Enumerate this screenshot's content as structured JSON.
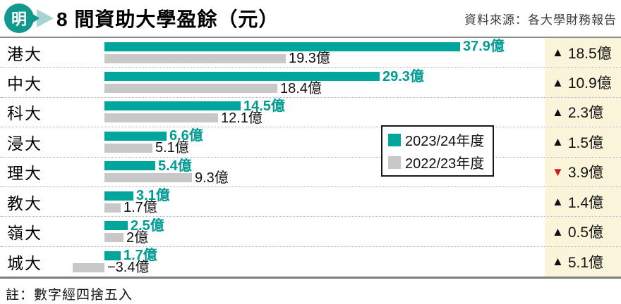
{
  "header": {
    "logo_char": "明",
    "title": "8 間資助大學盈餘（元）",
    "source": "資料來源：各大學財務報告"
  },
  "legend": {
    "items": [
      {
        "label": "2023/24年度",
        "color": "#00a69c"
      },
      {
        "label": "2022/23年度",
        "color": "#c8c8c8"
      }
    ]
  },
  "note": "註：數字經四捨五入",
  "colors": {
    "teal": "#00a69c",
    "teal_text": "#009a93",
    "gray": "#c8c8c8",
    "change_bg": "#faf5da",
    "up_triangle": "#111111",
    "down_triangle": "#d6171f"
  },
  "chart_data": {
    "type": "bar",
    "orientation": "horizontal",
    "title": "8 間資助大學盈餘（元）",
    "unit": "億",
    "value_range": [
      -4,
      38
    ],
    "legend_position": "middle-right",
    "categories": [
      "港大",
      "中大",
      "科大",
      "浸大",
      "理大",
      "教大",
      "嶺大",
      "城大"
    ],
    "series": [
      {
        "name": "2023/24年度",
        "values": [
          37.9,
          29.3,
          14.5,
          6.6,
          5.4,
          3.1,
          2.5,
          1.7
        ],
        "labels": [
          "37.9億",
          "29.3億",
          "14.5億",
          "6.6億",
          "5.4億",
          "3.1億",
          "2.5億",
          "1.7億"
        ]
      },
      {
        "name": "2022/23年度",
        "values": [
          19.3,
          18.4,
          12.1,
          5.1,
          9.3,
          1.7,
          2,
          -3.4
        ],
        "labels": [
          "19.3億",
          "18.4億",
          "12.1億",
          "5.1億",
          "9.3億",
          "1.7億",
          "2億",
          "−3.4億"
        ]
      }
    ],
    "changes": [
      {
        "dir": "up",
        "label": "18.5億"
      },
      {
        "dir": "up",
        "label": "10.9億"
      },
      {
        "dir": "up",
        "label": "2.3億"
      },
      {
        "dir": "up",
        "label": "1.5億"
      },
      {
        "dir": "down",
        "label": "3.9億"
      },
      {
        "dir": "up",
        "label": "1.4億"
      },
      {
        "dir": "up",
        "label": "0.5億"
      },
      {
        "dir": "up",
        "label": "5.1億"
      }
    ]
  }
}
